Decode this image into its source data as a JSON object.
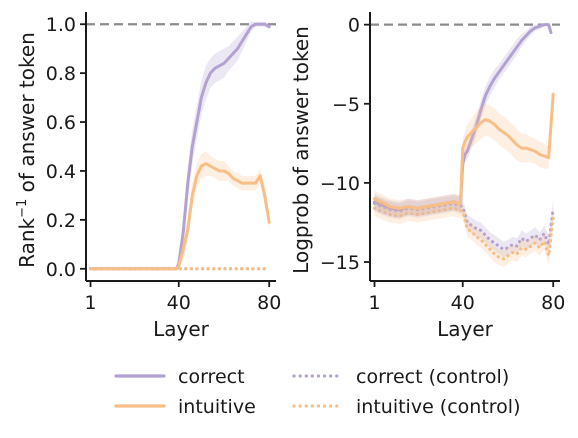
{
  "chart_data": [
    {
      "type": "line",
      "xlabel": "Layer",
      "ylabel_main": "Rank",
      "ylabel_sup": "−1",
      "ylabel_rest": " of answer token",
      "xlim": [
        -1,
        83
      ],
      "ylim": [
        -0.05,
        1.05
      ],
      "xticks": [
        1,
        40,
        80
      ],
      "yticks": [
        0.0,
        0.2,
        0.4,
        0.6,
        0.8,
        1.0
      ],
      "ytick_labels": [
        "0.0",
        "0.2",
        "0.4",
        "0.6",
        "0.8",
        "1.0"
      ],
      "reference_line": 1.0,
      "series": [
        {
          "key": "correct",
          "style": "solid",
          "color": "#b3a2d1",
          "x": [
            1,
            10,
            20,
            30,
            39,
            40,
            42,
            44,
            46,
            48,
            50,
            52,
            54,
            56,
            58,
            60,
            62,
            64,
            66,
            68,
            70,
            72,
            74,
            76,
            78,
            80
          ],
          "y": [
            0,
            0,
            0,
            0,
            0,
            0.02,
            0.15,
            0.35,
            0.5,
            0.6,
            0.7,
            0.76,
            0.8,
            0.82,
            0.83,
            0.84,
            0.86,
            0.88,
            0.9,
            0.93,
            0.96,
            0.99,
            1.0,
            1.0,
            1.0,
            0.99
          ],
          "band": [
            0,
            0,
            0,
            0,
            0,
            0.02,
            0.06,
            0.07,
            0.07,
            0.07,
            0.07,
            0.07,
            0.06,
            0.06,
            0.06,
            0.06,
            0.05,
            0.05,
            0.05,
            0.04,
            0.03,
            0.02,
            0.01,
            0.01,
            0.01,
            0.01
          ]
        },
        {
          "key": "intuitive",
          "style": "solid",
          "color": "#f7bf86",
          "x": [
            1,
            10,
            20,
            30,
            39,
            40,
            42,
            44,
            46,
            48,
            50,
            52,
            54,
            56,
            58,
            60,
            62,
            64,
            66,
            68,
            70,
            72,
            74,
            76,
            78,
            80
          ],
          "y": [
            0,
            0,
            0,
            0,
            0,
            0.01,
            0.08,
            0.16,
            0.3,
            0.38,
            0.42,
            0.43,
            0.42,
            0.41,
            0.4,
            0.4,
            0.39,
            0.37,
            0.36,
            0.35,
            0.35,
            0.35,
            0.35,
            0.38,
            0.3,
            0.19
          ],
          "band": [
            0,
            0,
            0,
            0,
            0,
            0.01,
            0.05,
            0.05,
            0.05,
            0.05,
            0.05,
            0.05,
            0.04,
            0.04,
            0.04,
            0.04,
            0.03,
            0.03,
            0.03,
            0.03,
            0.03,
            0.03,
            0.03,
            0.03,
            0.04,
            0.03
          ]
        },
        {
          "key": "correct_control",
          "style": "dotted",
          "color": "#b3a2d1",
          "x": [
            1,
            20,
            40,
            60,
            80
          ],
          "y": [
            0,
            0,
            0,
            0,
            0
          ],
          "band": [
            0,
            0,
            0,
            0,
            0
          ]
        },
        {
          "key": "intuitive_control",
          "style": "dotted",
          "color": "#f7bf86",
          "x": [
            1,
            20,
            40,
            60,
            80
          ],
          "y": [
            0,
            0,
            0,
            0,
            0
          ],
          "band": [
            0,
            0,
            0,
            0,
            0
          ]
        }
      ]
    },
    {
      "type": "line",
      "xlabel": "Layer",
      "ylabel": "Logprob of answer token",
      "xlim": [
        -1,
        83
      ],
      "ylim": [
        -16.2,
        0.8
      ],
      "xticks": [
        1,
        40,
        80
      ],
      "yticks": [
        -15,
        -10,
        -5,
        0
      ],
      "ytick_labels": [
        "−15",
        "−10",
        "−5",
        "0"
      ],
      "reference_line": 0,
      "series": [
        {
          "key": "correct",
          "style": "solid",
          "color": "#b3a2d1",
          "x": [
            1,
            4,
            8,
            12,
            16,
            20,
            24,
            28,
            32,
            36,
            39,
            40,
            41,
            42,
            44,
            46,
            48,
            50,
            52,
            54,
            56,
            58,
            60,
            62,
            64,
            66,
            68,
            70,
            72,
            74,
            76,
            78,
            79
          ],
          "y": [
            -11.2,
            -11.4,
            -11.6,
            -11.7,
            -11.5,
            -11.6,
            -11.5,
            -11.4,
            -11.3,
            -11.2,
            -11.3,
            -8.8,
            -8.2,
            -8.0,
            -7.2,
            -6.4,
            -5.4,
            -4.5,
            -3.9,
            -3.4,
            -3.0,
            -2.6,
            -2.2,
            -1.8,
            -1.4,
            -1.0,
            -0.7,
            -0.4,
            -0.2,
            -0.1,
            0,
            0,
            -0.5
          ],
          "band": [
            0.5,
            0.5,
            0.5,
            0.5,
            0.5,
            0.5,
            0.5,
            0.5,
            0.5,
            0.5,
            0.5,
            0.5,
            0.5,
            0.5,
            0.6,
            0.6,
            0.6,
            0.6,
            0.6,
            0.6,
            0.5,
            0.5,
            0.5,
            0.5,
            0.5,
            0.4,
            0.3,
            0.3,
            0.2,
            0.2,
            0.1,
            0.1,
            0.1
          ]
        },
        {
          "key": "intuitive",
          "style": "solid",
          "color": "#f7bf86",
          "x": [
            1,
            4,
            8,
            12,
            16,
            20,
            24,
            28,
            32,
            36,
            39,
            40,
            41,
            42,
            44,
            46,
            48,
            50,
            52,
            54,
            56,
            58,
            60,
            62,
            64,
            66,
            68,
            70,
            72,
            74,
            76,
            78,
            80
          ],
          "y": [
            -11.0,
            -11.2,
            -11.5,
            -11.6,
            -11.5,
            -11.6,
            -11.5,
            -11.4,
            -11.3,
            -11.2,
            -11.3,
            -7.8,
            -7.4,
            -7.1,
            -6.8,
            -6.5,
            -6.2,
            -6.0,
            -6.1,
            -6.3,
            -6.6,
            -6.8,
            -7.0,
            -7.3,
            -7.6,
            -7.8,
            -7.8,
            -7.9,
            -8.0,
            -8.2,
            -8.3,
            -8.4,
            -4.4
          ],
          "band": [
            0.5,
            0.5,
            0.5,
            0.5,
            0.5,
            0.5,
            0.5,
            0.5,
            0.5,
            0.5,
            0.5,
            0.6,
            0.7,
            0.8,
            0.9,
            1.0,
            1.0,
            1.0,
            1.0,
            1.0,
            1.0,
            1.0,
            1.0,
            1.0,
            1.0,
            0.9,
            0.9,
            0.8,
            0.8,
            0.8,
            0.8,
            0.7,
            0.5
          ]
        },
        {
          "key": "correct_control",
          "style": "dotted",
          "color": "#b3a2d1",
          "x": [
            1,
            4,
            8,
            12,
            16,
            20,
            24,
            28,
            32,
            36,
            40,
            42,
            44,
            46,
            48,
            50,
            52,
            54,
            56,
            58,
            60,
            62,
            64,
            66,
            68,
            70,
            72,
            74,
            76,
            78,
            80
          ],
          "y": [
            -11.3,
            -11.5,
            -11.7,
            -11.8,
            -11.6,
            -11.7,
            -11.6,
            -11.5,
            -11.4,
            -11.3,
            -11.5,
            -12.5,
            -12.7,
            -12.9,
            -13.0,
            -13.3,
            -13.6,
            -13.8,
            -14.0,
            -14.2,
            -14.1,
            -13.9,
            -14.0,
            -13.5,
            -13.7,
            -13.5,
            -13.3,
            -13.6,
            -13.2,
            -13.9,
            -11.6
          ],
          "band": [
            0.5,
            0.5,
            0.5,
            0.5,
            0.5,
            0.5,
            0.5,
            0.5,
            0.5,
            0.5,
            0.5,
            0.5,
            0.5,
            0.5,
            0.5,
            0.5,
            0.5,
            0.5,
            0.5,
            0.5,
            0.5,
            0.5,
            0.5,
            0.5,
            0.5,
            0.5,
            0.5,
            0.5,
            0.5,
            0.6,
            0.6
          ]
        },
        {
          "key": "intuitive_control",
          "style": "dotted",
          "color": "#f7bf86",
          "x": [
            1,
            4,
            8,
            12,
            16,
            20,
            24,
            28,
            32,
            36,
            40,
            42,
            44,
            46,
            48,
            50,
            52,
            54,
            56,
            58,
            60,
            62,
            64,
            66,
            68,
            70,
            72,
            74,
            76,
            78,
            80
          ],
          "y": [
            -11.6,
            -11.8,
            -12.0,
            -12.1,
            -11.9,
            -12.0,
            -11.9,
            -11.8,
            -11.7,
            -11.6,
            -11.8,
            -12.9,
            -13.1,
            -13.4,
            -13.6,
            -13.9,
            -14.2,
            -14.5,
            -14.7,
            -14.8,
            -14.6,
            -14.4,
            -14.5,
            -14.1,
            -14.2,
            -14.0,
            -13.8,
            -14.1,
            -13.7,
            -14.6,
            -12.2
          ],
          "band": [
            0.5,
            0.5,
            0.5,
            0.5,
            0.5,
            0.5,
            0.5,
            0.5,
            0.5,
            0.5,
            0.5,
            0.5,
            0.5,
            0.5,
            0.5,
            0.5,
            0.5,
            0.5,
            0.5,
            0.5,
            0.5,
            0.5,
            0.5,
            0.5,
            0.5,
            0.5,
            0.5,
            0.5,
            0.5,
            0.6,
            0.6
          ]
        }
      ]
    }
  ],
  "legend": {
    "placement": "bottom-center",
    "entries": [
      {
        "key": "correct",
        "label": "correct",
        "style": "solid",
        "color": "#b3a2d1"
      },
      {
        "key": "intuitive",
        "label": "intuitive",
        "style": "solid",
        "color": "#f7bf86"
      },
      {
        "key": "correct_control",
        "label": "correct (control)",
        "style": "dotted",
        "color": "#b3a2d1"
      },
      {
        "key": "intuitive_control",
        "label": "intuitive (control)",
        "style": "dotted",
        "color": "#f7bf86"
      }
    ]
  },
  "colors": {
    "axis": "#1a1a1a",
    "reference_line": "#8c8c8c"
  }
}
